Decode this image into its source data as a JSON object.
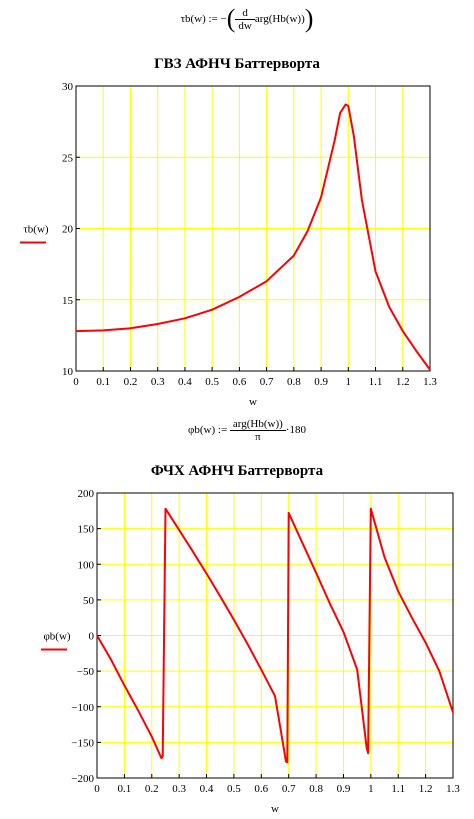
{
  "formula1": {
    "lhs": "τb(w) :=",
    "minus": "−",
    "frac_num": "d",
    "frac_den": "dw",
    "rhs": "arg(Hb(w))"
  },
  "formula2": {
    "lhs": "φb(w) :=",
    "frac_num": "arg(Hb(w))",
    "frac_den": "π",
    "rhs": "·180"
  },
  "colors": {
    "curve": "#ff0000",
    "grid": "#ffff00",
    "axis": "#000000"
  },
  "chart_data": [
    {
      "type": "line",
      "title": "ГВЗ АФНЧ Баттерворта",
      "xlabel": "w",
      "ylabel": "τb(w)",
      "xlim": [
        0,
        1.3
      ],
      "ylim": [
        10,
        30
      ],
      "xticks": [
        "0",
        "0.1",
        "0.2",
        "0.3",
        "0.4",
        "0.5",
        "0.6",
        "0.7",
        "0.8",
        "0.9",
        "1",
        "1.1",
        "1.2",
        "1.3"
      ],
      "yticks": [
        "10",
        "15",
        "20",
        "25",
        "30"
      ],
      "grid": true,
      "series": [
        {
          "x": [
            0,
            0.1,
            0.2,
            0.3,
            0.4,
            0.5,
            0.6,
            0.7,
            0.8,
            0.85,
            0.9,
            0.95,
            0.97,
            0.99,
            1.0,
            1.02,
            1.05,
            1.1,
            1.15,
            1.2,
            1.25,
            1.3
          ],
          "y": [
            12.8,
            12.85,
            13.0,
            13.3,
            13.7,
            14.3,
            15.2,
            16.3,
            18.1,
            19.8,
            22.2,
            26.2,
            28.1,
            28.7,
            28.6,
            26.5,
            22.0,
            17.0,
            14.5,
            12.8,
            11.4,
            10.1
          ]
        }
      ]
    },
    {
      "type": "line",
      "title": "ФЧХ АФНЧ Баттерворта",
      "xlabel": "w",
      "ylabel": "φb(w)",
      "xlim": [
        0,
        1.3
      ],
      "ylim": [
        -200,
        200
      ],
      "xticks": [
        "0",
        "0.1",
        "0.2",
        "0.3",
        "0.4",
        "0.5",
        "0.6",
        "0.7",
        "0.8",
        "0.9",
        "1",
        "1.1",
        "1.2",
        "1.3"
      ],
      "yticks": [
        "−200",
        "−150",
        "−100",
        "−50",
        "0",
        "50",
        "100",
        "150",
        "200"
      ],
      "grid": true,
      "series": [
        {
          "x": [
            0,
            0.05,
            0.1,
            0.15,
            0.2,
            0.235,
            0.24,
            0.25,
            0.3,
            0.35,
            0.4,
            0.45,
            0.5,
            0.55,
            0.6,
            0.65,
            0.69,
            0.695,
            0.7,
            0.75,
            0.8,
            0.85,
            0.9,
            0.95,
            0.985,
            0.99,
            1.0,
            1.05,
            1.1,
            1.15,
            1.2,
            1.25,
            1.3
          ],
          "y": [
            0,
            -33,
            -70,
            -105,
            -142,
            -172,
            -170,
            178,
            148,
            118,
            87,
            55,
            22,
            -12,
            -48,
            -85,
            -177,
            -178,
            172,
            130,
            88,
            45,
            5,
            -48,
            -158,
            -165,
            178,
            110,
            62,
            25,
            -10,
            -50,
            -108
          ]
        }
      ]
    }
  ]
}
